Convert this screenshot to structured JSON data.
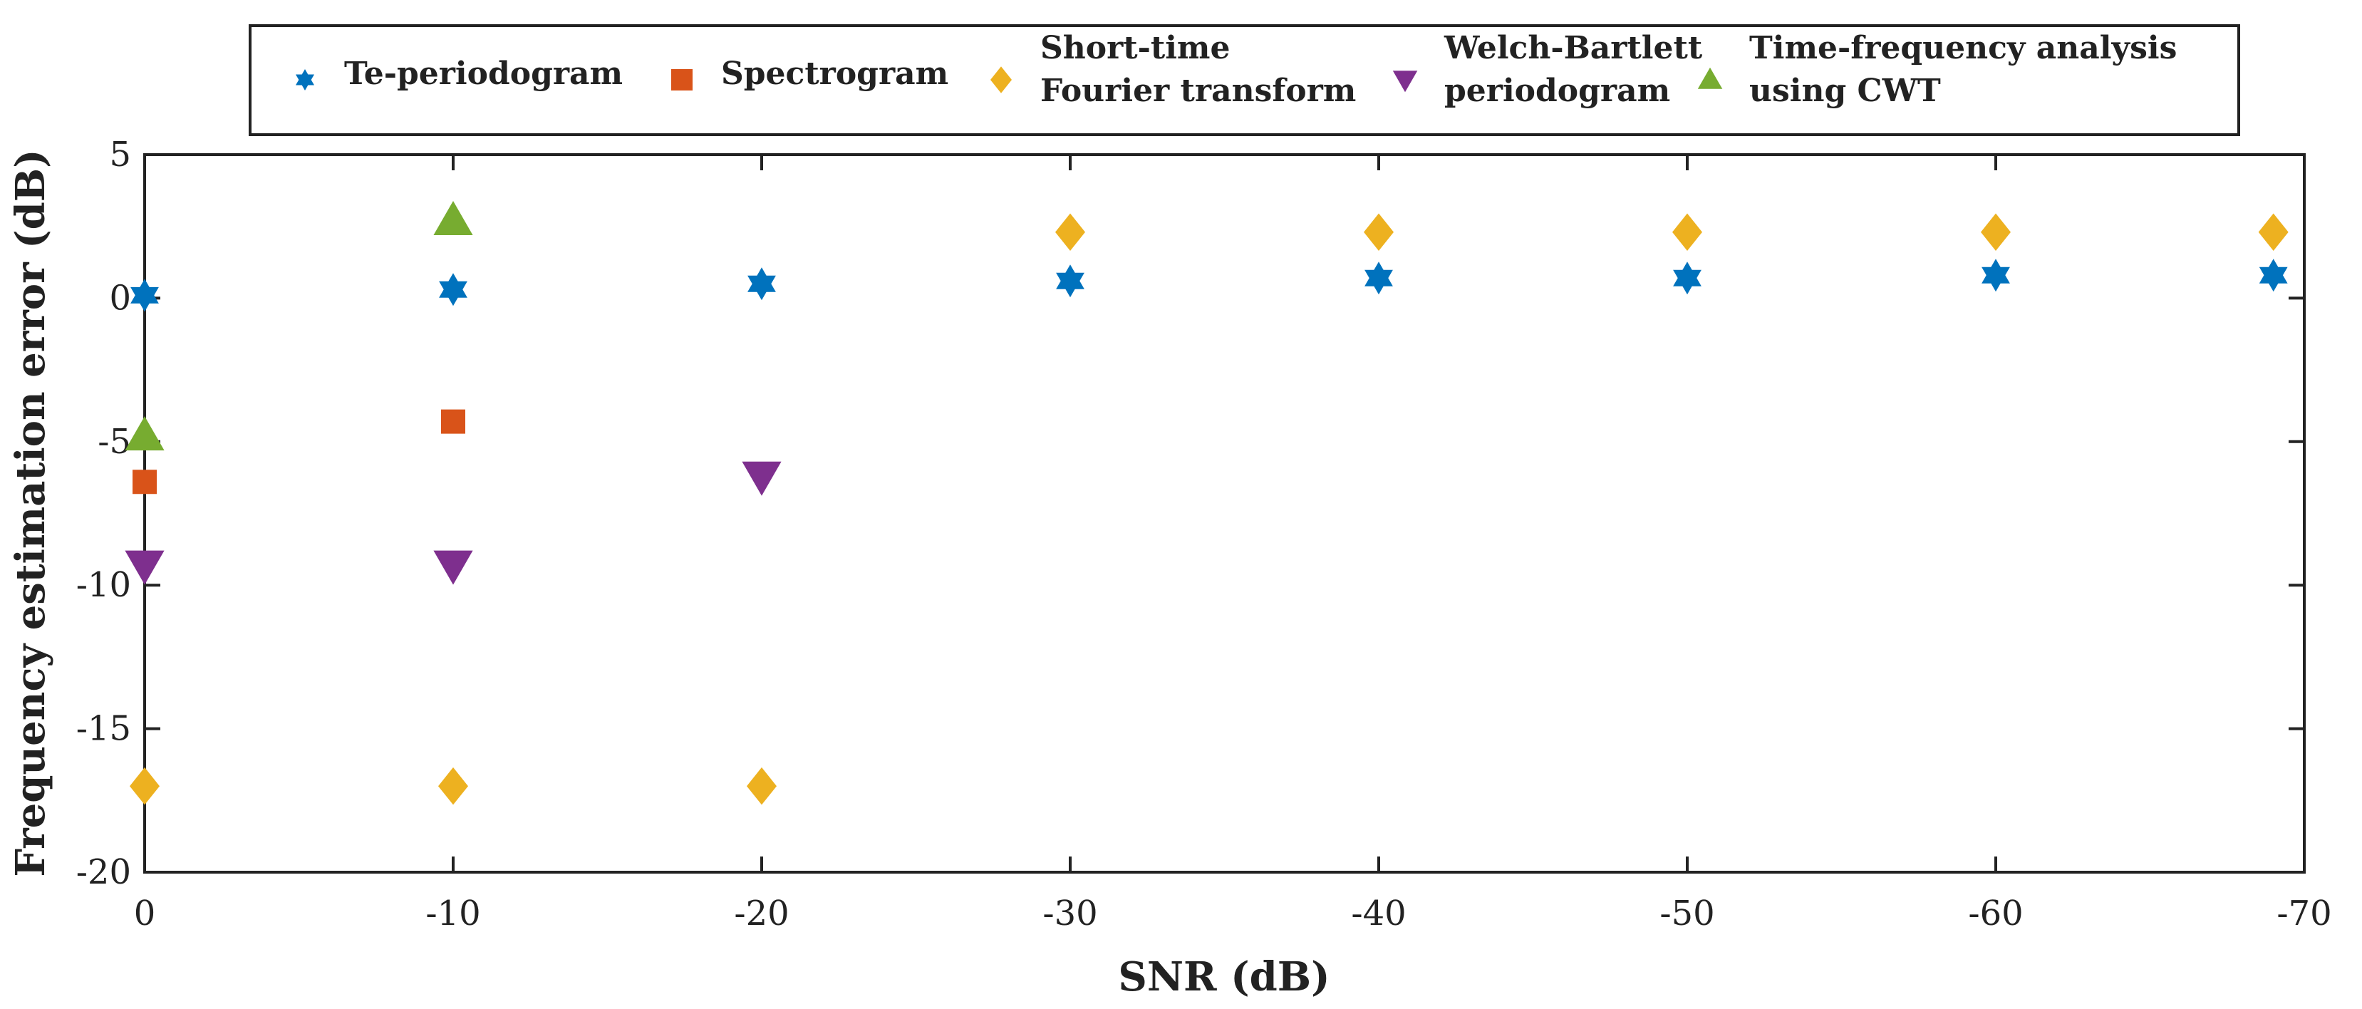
{
  "chart_data": {
    "type": "scatter",
    "xlabel": "SNR (dB)",
    "ylabel": "Frequency estimation error (dB)",
    "xlim": [
      0,
      -70
    ],
    "ylim": [
      -20,
      5
    ],
    "x_ticks": [
      "0",
      "-10",
      "-20",
      "-30",
      "-40",
      "-50",
      "-60",
      "-70"
    ],
    "y_ticks": [
      "5",
      "0",
      "-5",
      "-10",
      "-15",
      "-20"
    ],
    "grid": false,
    "legend_position": "top, horizontal, outside plot",
    "series": [
      {
        "name": "Te-periodogram",
        "marker": "hexagram",
        "color": "#0072bd",
        "x": [
          0,
          -10,
          -20,
          -30,
          -40,
          -50,
          -60,
          -69
        ],
        "y": [
          0.1,
          0.3,
          0.5,
          0.6,
          0.7,
          0.7,
          0.8,
          0.8
        ]
      },
      {
        "name": "Spectrogram",
        "marker": "square",
        "color": "#d95319",
        "x": [
          0,
          -10
        ],
        "y": [
          -6.4,
          -4.3
        ]
      },
      {
        "name": "Short-time Fourier transform",
        "legend_lines": [
          "Short-time",
          "Fourier transform"
        ],
        "marker": "diamond",
        "color": "#edb120",
        "x": [
          0,
          -10,
          -20,
          -30,
          -40,
          -50,
          -60,
          -69
        ],
        "y": [
          -17.0,
          -17.0,
          -17.0,
          2.3,
          2.3,
          2.3,
          2.3,
          2.3
        ]
      },
      {
        "name": "Welch-Bartlett periodogram",
        "legend_lines": [
          "Welch-Bartlett",
          "periodogram"
        ],
        "marker": "triangle-down",
        "color": "#7e2f8e",
        "x": [
          0,
          -10,
          -20
        ],
        "y": [
          -9.3,
          -9.3,
          -6.2
        ]
      },
      {
        "name": "Time-frequency analysis using CWT",
        "legend_lines": [
          "Time-frequency analysis",
          "using CWT"
        ],
        "marker": "triangle-up",
        "color": "#77ac30",
        "x": [
          0,
          -10
        ],
        "y": [
          -4.8,
          2.7
        ]
      }
    ]
  }
}
